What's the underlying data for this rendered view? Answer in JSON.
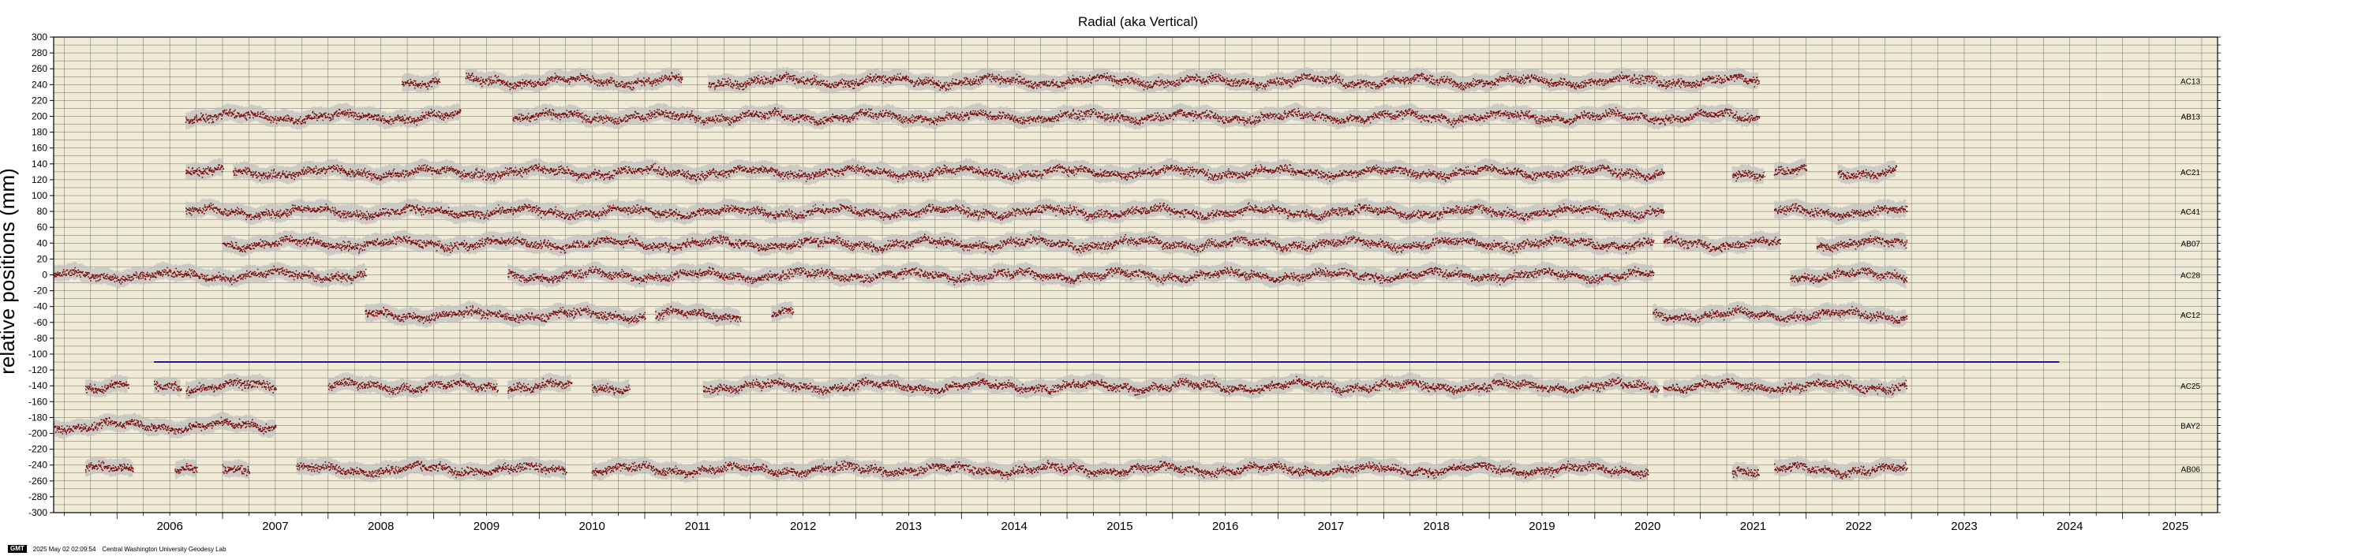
{
  "chart_data": {
    "type": "scatter",
    "title": "Radial (aka Vertical)",
    "ylabel": "relative positions (mm)",
    "xlabel": "",
    "xlim": [
      2005.4,
      2025.9
    ],
    "ylim": [
      -300,
      300
    ],
    "y_ticks": [
      300,
      280,
      260,
      240,
      220,
      200,
      180,
      160,
      140,
      120,
      100,
      80,
      60,
      40,
      20,
      0,
      -20,
      -40,
      -60,
      -80,
      -100,
      -120,
      -140,
      -160,
      -180,
      -200,
      -220,
      -240,
      -260,
      -280,
      -300
    ],
    "x_tick_labels": [
      "2006",
      "2007",
      "2008",
      "2009",
      "2010",
      "2011",
      "2012",
      "2013",
      "2014",
      "2015",
      "2016",
      "2017",
      "2018",
      "2019",
      "2020",
      "2021",
      "2022",
      "2023",
      "2024",
      "2025"
    ],
    "grid": true,
    "background_color": "#f0ebd6",
    "point_color": "#7a0a0a",
    "uncertainty_color": "#c0c0c0",
    "reference_line": {
      "y": -110,
      "x_start": 2006.35,
      "x_end": 2024.4,
      "color": "#1c1c8c"
    },
    "series": [
      {
        "name": "AC13",
        "offset": 245,
        "segments": [
          [
            2008.7,
            2009.05
          ],
          [
            2009.3,
            2011.35
          ],
          [
            2011.6,
            2021.55
          ]
        ]
      },
      {
        "name": "AB13",
        "offset": 200,
        "segments": [
          [
            2006.65,
            2009.25
          ],
          [
            2009.75,
            2021.55
          ]
        ]
      },
      {
        "name": "AC21",
        "offset": 130,
        "segments": [
          [
            2006.65,
            2007.0
          ],
          [
            2007.1,
            2020.65
          ],
          [
            2021.3,
            2021.6
          ],
          [
            2021.7,
            2022.0
          ],
          [
            2022.3,
            2022.85
          ]
        ]
      },
      {
        "name": "AC41",
        "offset": 80,
        "segments": [
          [
            2006.65,
            2020.65
          ],
          [
            2021.7,
            2022.95
          ]
        ]
      },
      {
        "name": "AB07",
        "offset": 40,
        "segments": [
          [
            2007.0,
            2020.55
          ],
          [
            2020.65,
            2021.75
          ],
          [
            2022.1,
            2022.95
          ]
        ]
      },
      {
        "name": "AC28",
        "offset": 0,
        "segments": [
          [
            2005.4,
            2008.35
          ],
          [
            2009.7,
            2020.55
          ],
          [
            2021.85,
            2022.95
          ]
        ]
      },
      {
        "name": "AC12",
        "offset": -50,
        "segments": [
          [
            2008.35,
            2011.0
          ],
          [
            2011.1,
            2011.9
          ],
          [
            2012.2,
            2012.4
          ],
          [
            2020.55,
            2022.95
          ]
        ]
      },
      {
        "name": "AC25",
        "offset": -140,
        "segments": [
          [
            2005.7,
            2006.1
          ],
          [
            2006.35,
            2006.6
          ],
          [
            2006.65,
            2007.2
          ],
          [
            2007.2,
            2007.5
          ],
          [
            2008.0,
            2009.6
          ],
          [
            2009.7,
            2010.3
          ],
          [
            2010.5,
            2010.85
          ],
          [
            2011.55,
            2020.6
          ],
          [
            2020.65,
            2022.95
          ]
        ]
      },
      {
        "name": "BAY2",
        "offset": -190,
        "segments": [
          [
            2005.4,
            2007.5
          ]
        ]
      },
      {
        "name": "AB06",
        "offset": -245,
        "segments": [
          [
            2005.7,
            2006.15
          ],
          [
            2006.55,
            2006.75
          ],
          [
            2007.0,
            2007.25
          ],
          [
            2007.7,
            2010.25
          ],
          [
            2010.5,
            2020.5
          ],
          [
            2021.3,
            2021.55
          ],
          [
            2021.7,
            2022.95
          ]
        ]
      }
    ]
  },
  "footer": {
    "gmt_badge": "GMT",
    "timestamp": "2025 May 02 02:09:54",
    "lab": "Central Washington University Geodesy Lab"
  }
}
